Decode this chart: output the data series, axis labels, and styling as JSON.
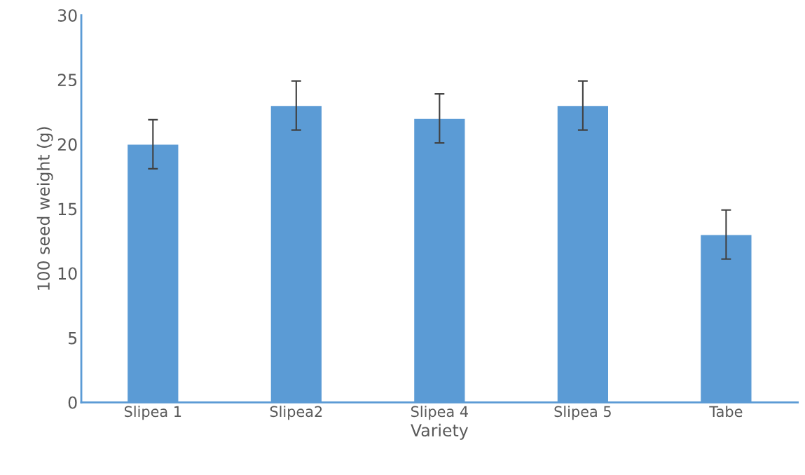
{
  "chart_data": {
    "type": "bar",
    "xlabel": "Variety",
    "ylabel": "100 seed weight (g)",
    "categories": [
      "Slipea 1",
      "Slipea2",
      "Slipea 4",
      "Slipea 5",
      "Tabe"
    ],
    "values": [
      20,
      23,
      22,
      23,
      13
    ],
    "errors": [
      1.9,
      1.9,
      1.9,
      1.9,
      1.9
    ],
    "color": "#5b9bd5",
    "ylim": [
      0,
      30
    ],
    "yticks": [
      0,
      5,
      10,
      15,
      20,
      25,
      30
    ],
    "grid": false
  }
}
